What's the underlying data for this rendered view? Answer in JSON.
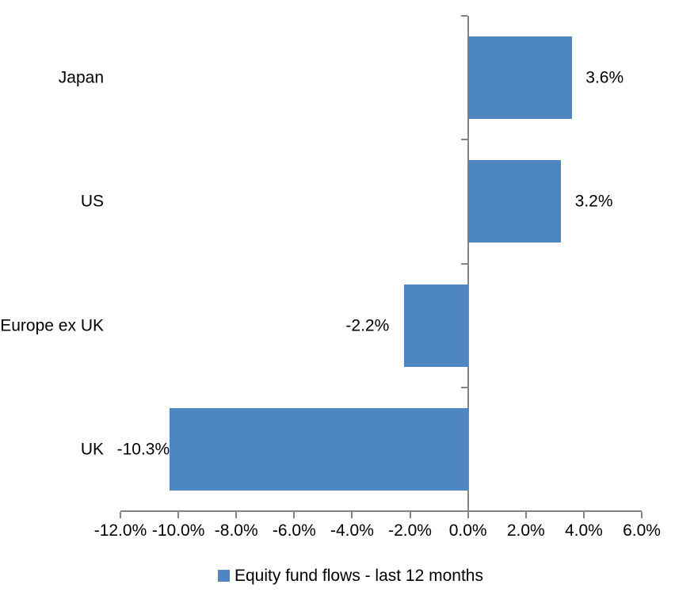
{
  "chart_data": {
    "type": "bar",
    "orientation": "horizontal",
    "title": "",
    "categories": [
      "Japan",
      "US",
      "Europe ex UK",
      "UK"
    ],
    "values": [
      3.6,
      3.2,
      -2.2,
      -10.3
    ],
    "value_labels": [
      "3.6%",
      "3.2%",
      "-2.2%",
      "-10.3%"
    ],
    "series_name": "Equity fund flows - last 12 months",
    "xlim": [
      -12,
      6
    ],
    "x_ticks": [
      -12,
      -10,
      -8,
      -6,
      -4,
      -2,
      0,
      2,
      4,
      6
    ],
    "x_tick_labels": [
      "-12.0%",
      "-10.0%",
      "-8.0%",
      "-6.0%",
      "-4.0%",
      "-2.0%",
      "0.0%",
      "2.0%",
      "4.0%",
      "6.0%"
    ],
    "grid": false,
    "legend_position": "bottom",
    "bar_color": "#4D86C1",
    "axis_color": "#848484",
    "text_color": "#000000",
    "background_color": "#FFFFFF"
  }
}
